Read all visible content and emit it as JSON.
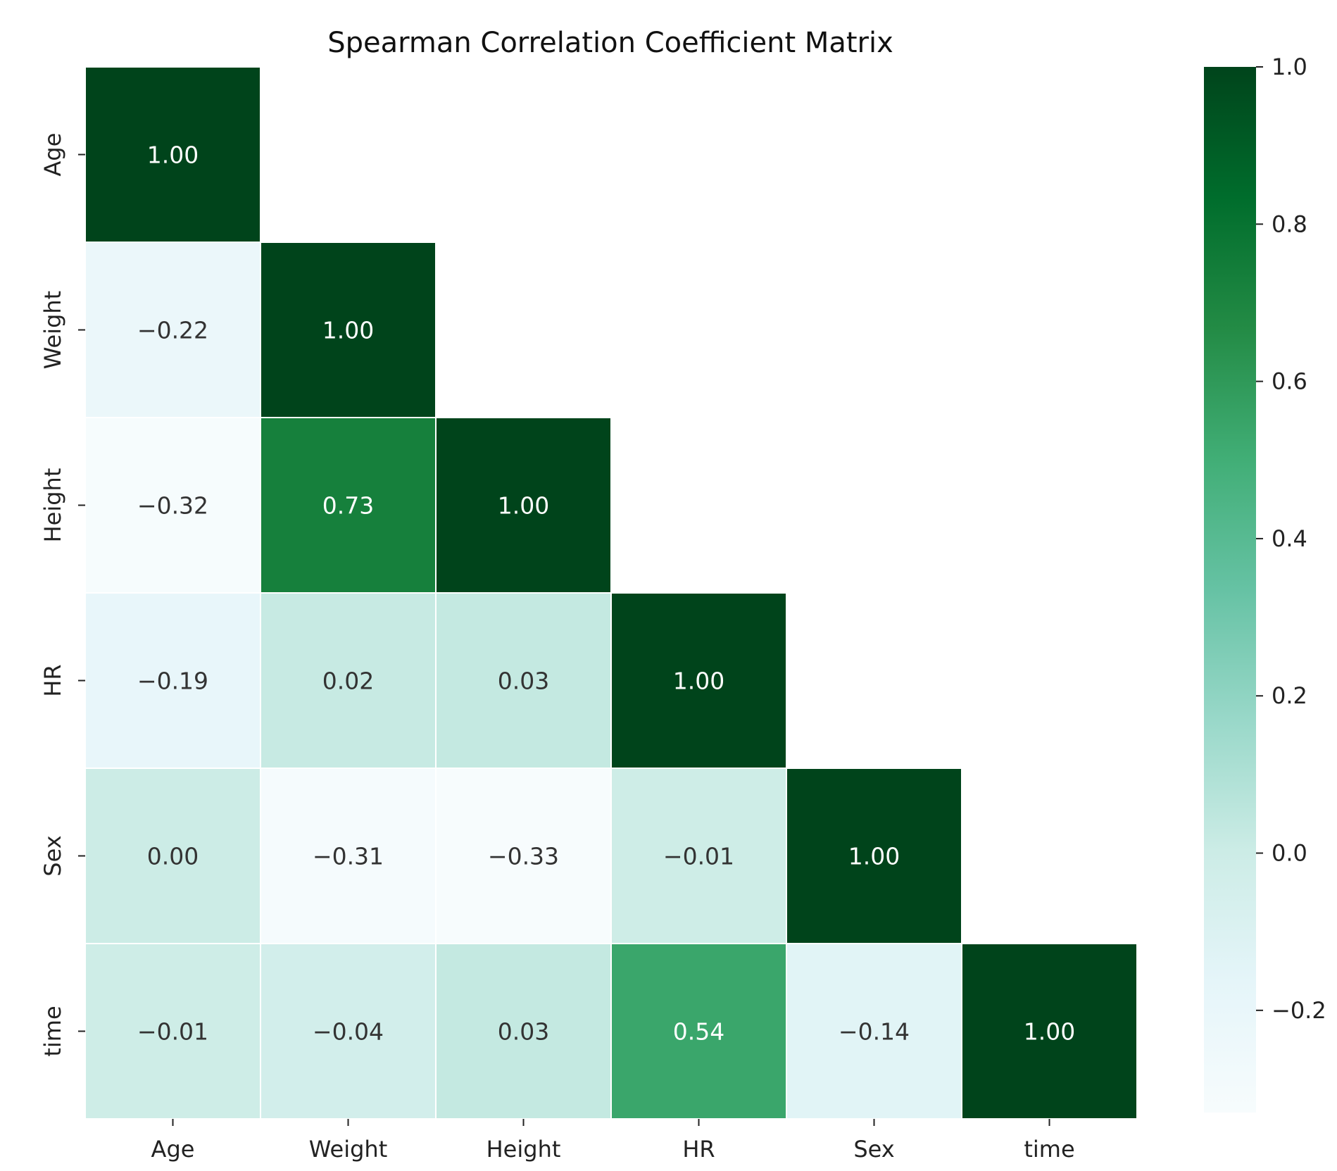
{
  "chart_data": {
    "type": "heatmap",
    "title": "Spearman Correlation Coefficient Matrix",
    "xlabel": "",
    "ylabel": "",
    "x_labels": [
      "Age",
      "Weight",
      "Height",
      "HR",
      "Sex",
      "time"
    ],
    "y_labels": [
      "Age",
      "Weight",
      "Height",
      "HR",
      "Sex",
      "time"
    ],
    "mask": "upper triangle hidden",
    "values": [
      [
        1.0,
        null,
        null,
        null,
        null,
        null
      ],
      [
        -0.22,
        1.0,
        null,
        null,
        null,
        null
      ],
      [
        -0.32,
        0.73,
        1.0,
        null,
        null,
        null
      ],
      [
        -0.19,
        0.02,
        0.03,
        1.0,
        null,
        null
      ],
      [
        0.0,
        -0.31,
        -0.33,
        -0.01,
        1.0,
        null
      ],
      [
        -0.01,
        -0.04,
        0.03,
        0.54,
        -0.14,
        1.0
      ]
    ],
    "cell_labels": [
      [
        "1.00",
        "",
        "",
        "",
        "",
        ""
      ],
      [
        "−0.22",
        "1.00",
        "",
        "",
        "",
        ""
      ],
      [
        "−0.32",
        "0.73",
        "1.00",
        "",
        "",
        ""
      ],
      [
        "−0.19",
        "0.02",
        "0.03",
        "1.00",
        "",
        ""
      ],
      [
        "0.00",
        "−0.31",
        "−0.33",
        "−0.01",
        "1.00",
        ""
      ],
      [
        "−0.01",
        "−0.04",
        "0.03",
        "0.54",
        "−0.14",
        "1.00"
      ]
    ],
    "colorbar": {
      "vmin": -0.33,
      "vmax": 1.0,
      "ticks": [
        1.0,
        0.8,
        0.6,
        0.4,
        0.2,
        0.0,
        -0.2
      ],
      "tick_labels": [
        "1.0",
        "0.8",
        "0.6",
        "0.4",
        "0.2",
        "0.0",
        "−0.2"
      ]
    },
    "colormap": "Greens-like (light blue-white to dark green)",
    "colors": {
      "stops": [
        "#f7fcfd",
        "#e5f5f9",
        "#ccece6",
        "#99d8c9",
        "#66c2a4",
        "#41ae76",
        "#238b45",
        "#006d2c",
        "#00441b"
      ],
      "cell_border": "#ffffff",
      "text_dark": "#333333",
      "text_light": "#ffffff"
    },
    "grid": false,
    "legend": "colorbar right"
  }
}
